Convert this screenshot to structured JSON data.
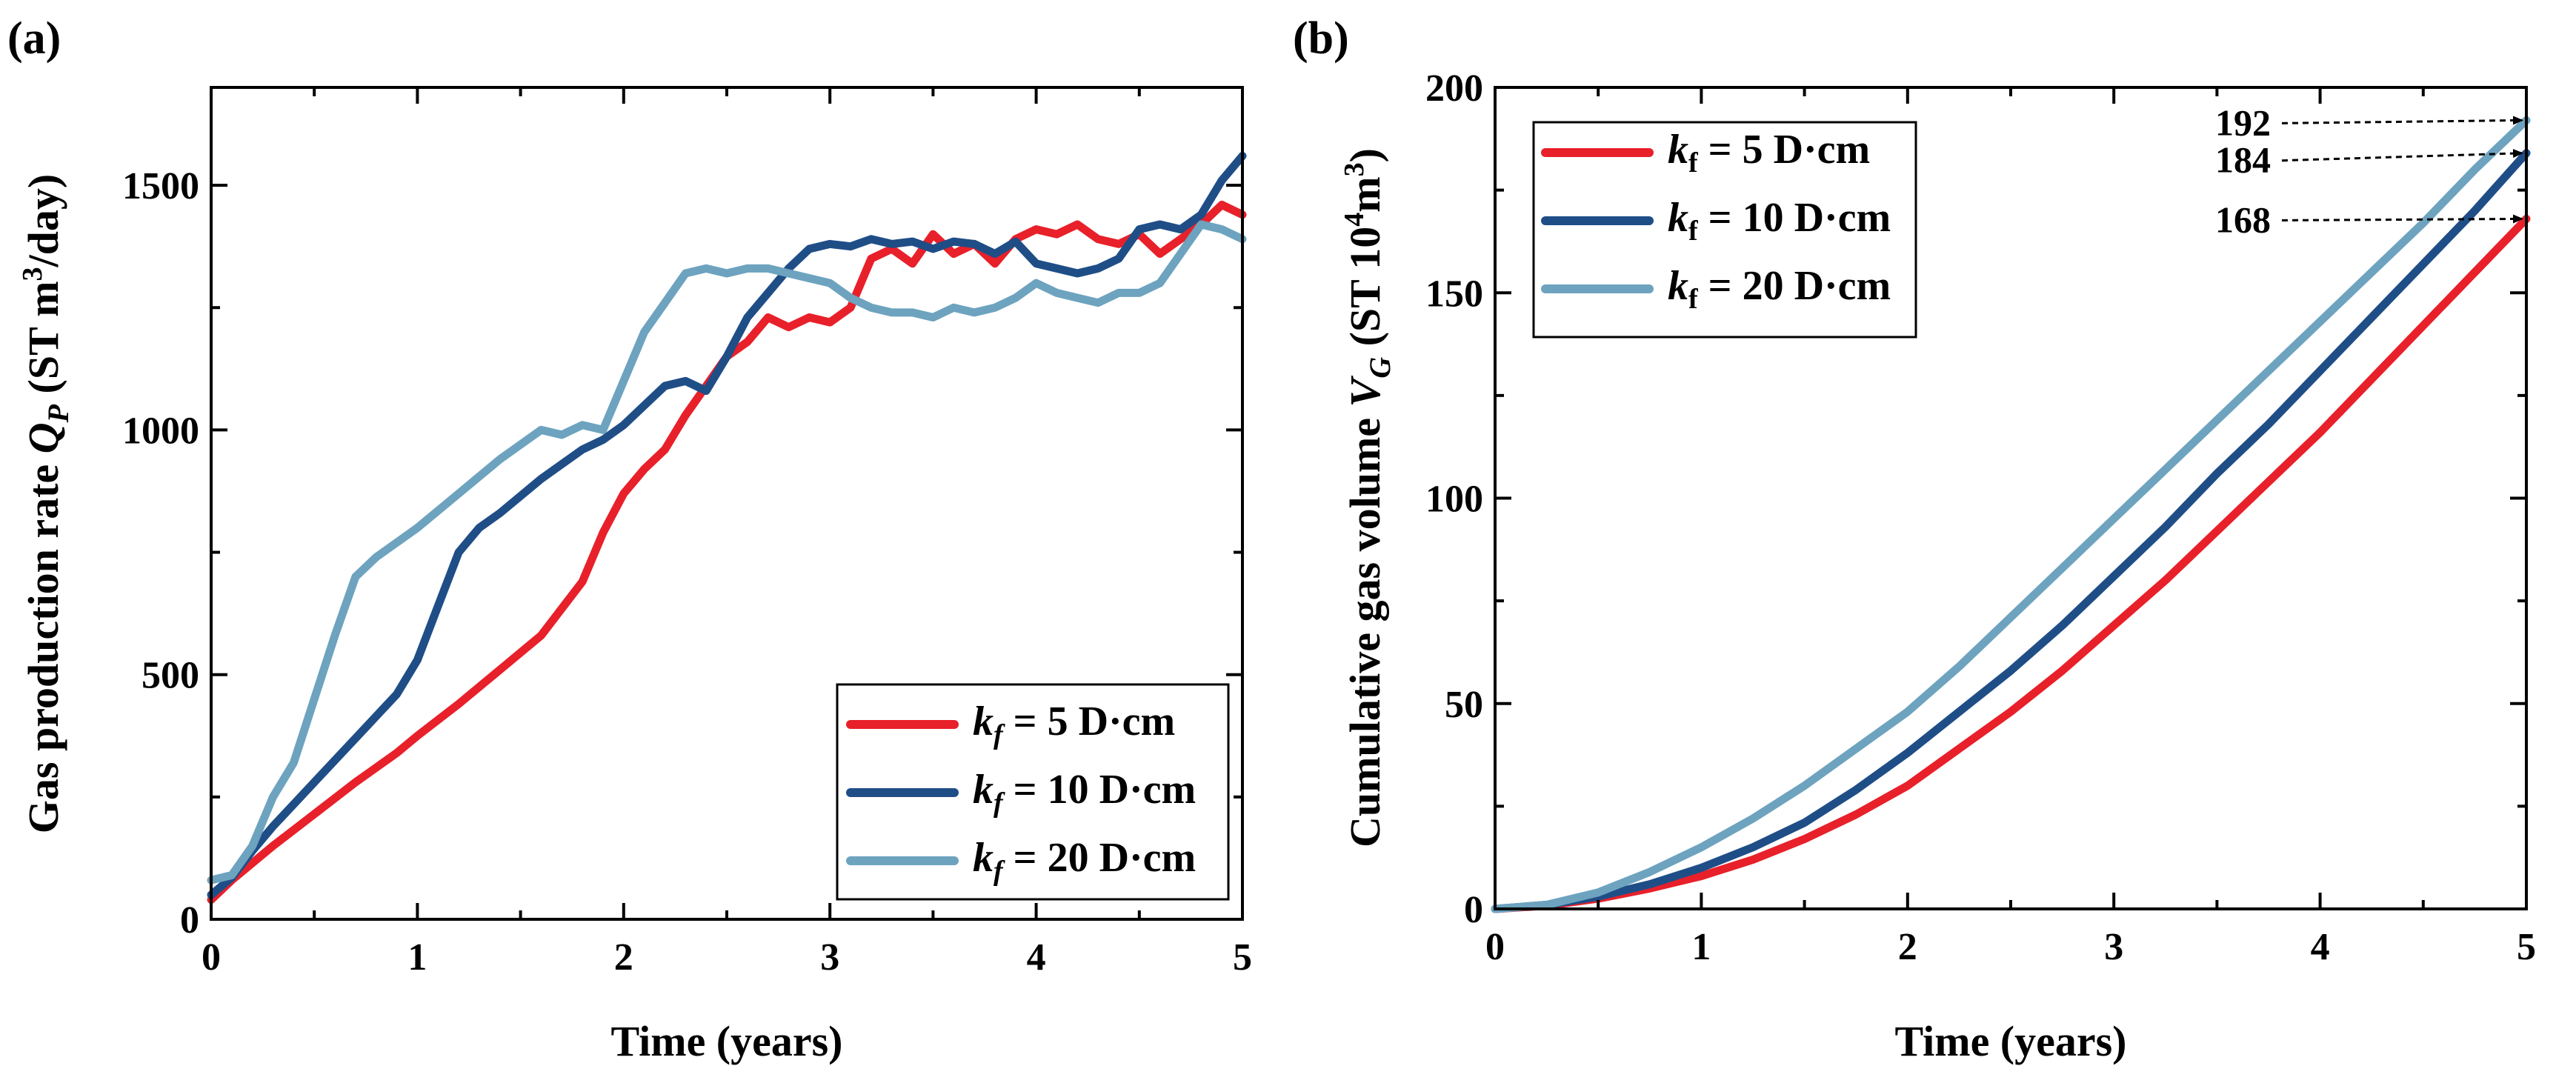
{
  "chart_data": [
    {
      "type": "line",
      "panel_label": "(a)",
      "xlabel": "Time (years)",
      "ylabel": {
        "prefix": "Gas production rate ",
        "var": "Q",
        "sub": "P",
        "unit_before": " (ST m",
        "sup": "3",
        "unit_after": "/day)"
      },
      "xlim": [
        0,
        5
      ],
      "ylim": [
        0,
        1700
      ],
      "xticks": [
        0,
        1,
        2,
        3,
        4,
        5
      ],
      "yticks": [
        0,
        500,
        1000,
        1500
      ],
      "grid": false,
      "legend_position": "bottom-right",
      "series": [
        {
          "name": "k_f = 5 D·cm",
          "legend": {
            "var": "k",
            "sub": "f",
            "rest": " = 5 D·cm"
          },
          "color": "#e8202a",
          "x": [
            0.0,
            0.1,
            0.2,
            0.3,
            0.5,
            0.7,
            0.9,
            1.0,
            1.2,
            1.4,
            1.6,
            1.8,
            1.9,
            2.0,
            2.1,
            2.2,
            2.3,
            2.4,
            2.5,
            2.6,
            2.7,
            2.8,
            2.9,
            3.0,
            3.1,
            3.2,
            3.3,
            3.4,
            3.5,
            3.6,
            3.7,
            3.8,
            3.9,
            4.0,
            4.1,
            4.2,
            4.3,
            4.4,
            4.5,
            4.6,
            4.7,
            4.8,
            4.9,
            5.0
          ],
          "y": [
            40,
            80,
            115,
            150,
            215,
            280,
            340,
            375,
            440,
            510,
            580,
            690,
            790,
            870,
            920,
            960,
            1030,
            1090,
            1150,
            1180,
            1230,
            1210,
            1230,
            1220,
            1250,
            1350,
            1370,
            1340,
            1400,
            1360,
            1380,
            1340,
            1390,
            1410,
            1400,
            1420,
            1390,
            1380,
            1400,
            1360,
            1390,
            1420,
            1460,
            1440
          ]
        },
        {
          "name": "k_f = 10 D·cm",
          "legend": {
            "var": "k",
            "sub": "f",
            "rest": " = 10 D·cm"
          },
          "color": "#1f4e87",
          "x": [
            0.0,
            0.1,
            0.2,
            0.3,
            0.5,
            0.7,
            0.9,
            1.0,
            1.1,
            1.2,
            1.3,
            1.4,
            1.6,
            1.8,
            1.9,
            2.0,
            2.1,
            2.2,
            2.3,
            2.4,
            2.5,
            2.6,
            2.7,
            2.8,
            2.9,
            3.0,
            3.1,
            3.2,
            3.3,
            3.4,
            3.5,
            3.6,
            3.7,
            3.8,
            3.9,
            4.0,
            4.1,
            4.2,
            4.3,
            4.4,
            4.5,
            4.6,
            4.7,
            4.8,
            4.9,
            5.0
          ],
          "y": [
            50,
            85,
            140,
            190,
            280,
            370,
            460,
            530,
            640,
            750,
            800,
            830,
            900,
            960,
            980,
            1010,
            1050,
            1090,
            1100,
            1080,
            1150,
            1230,
            1280,
            1330,
            1370,
            1380,
            1375,
            1390,
            1380,
            1385,
            1370,
            1385,
            1380,
            1360,
            1385,
            1340,
            1330,
            1320,
            1330,
            1350,
            1410,
            1420,
            1410,
            1440,
            1510,
            1560
          ]
        },
        {
          "name": "k_f = 20 D·cm",
          "legend": {
            "var": "k",
            "sub": "f",
            "rest": " = 20 D·cm"
          },
          "color": "#6da3bf",
          "x": [
            0.0,
            0.1,
            0.2,
            0.3,
            0.4,
            0.5,
            0.6,
            0.7,
            0.8,
            0.9,
            1.0,
            1.2,
            1.4,
            1.6,
            1.7,
            1.8,
            1.9,
            2.0,
            2.1,
            2.2,
            2.3,
            2.4,
            2.5,
            2.6,
            2.7,
            2.8,
            2.9,
            3.0,
            3.1,
            3.2,
            3.3,
            3.4,
            3.5,
            3.6,
            3.7,
            3.8,
            3.9,
            4.0,
            4.1,
            4.2,
            4.3,
            4.4,
            4.5,
            4.6,
            4.7,
            4.8,
            4.9,
            5.0
          ],
          "y": [
            80,
            90,
            150,
            250,
            320,
            450,
            580,
            700,
            740,
            770,
            800,
            870,
            940,
            1000,
            990,
            1010,
            1000,
            1100,
            1200,
            1260,
            1320,
            1330,
            1320,
            1330,
            1330,
            1320,
            1310,
            1300,
            1270,
            1250,
            1240,
            1240,
            1230,
            1250,
            1240,
            1250,
            1270,
            1300,
            1280,
            1270,
            1260,
            1280,
            1280,
            1300,
            1360,
            1420,
            1410,
            1390
          ]
        }
      ]
    },
    {
      "type": "line",
      "panel_label": "(b)",
      "xlabel": "Time (years)",
      "ylabel": {
        "prefix": "Cumulative gas volume ",
        "var": "V",
        "sub": "G",
        "unit_before": " (ST 10",
        "sup": "4",
        "unit_mid": "m",
        "sup2": "3",
        "unit_after": ")"
      },
      "xlim": [
        0,
        5
      ],
      "ylim": [
        0,
        200
      ],
      "xticks": [
        0,
        1,
        2,
        3,
        4,
        5
      ],
      "yticks": [
        0,
        50,
        100,
        150,
        200
      ],
      "grid": false,
      "legend_position": "top-left",
      "annotations": [
        {
          "text": "192",
          "target_y": 192
        },
        {
          "text": "184",
          "target_y": 184
        },
        {
          "text": "168",
          "target_y": 168
        }
      ],
      "series": [
        {
          "name": "k_f = 5 D·cm",
          "legend": {
            "var": "k",
            "sub": "f",
            "rest": " = 5 D·cm"
          },
          "color": "#e8202a",
          "x": [
            0.0,
            0.25,
            0.5,
            0.75,
            1.0,
            1.25,
            1.5,
            1.75,
            2.0,
            2.25,
            2.5,
            2.75,
            3.0,
            3.25,
            3.5,
            3.75,
            4.0,
            4.25,
            4.5,
            4.75,
            5.0
          ],
          "y": [
            0,
            0.8,
            2.5,
            5,
            8,
            12,
            17,
            23,
            30,
            39,
            48,
            58,
            69,
            80,
            92,
            104,
            116,
            129,
            142,
            155,
            168
          ]
        },
        {
          "name": "k_f = 10 D·cm",
          "legend": {
            "var": "k",
            "sub": "f",
            "rest": " = 10 D·cm"
          },
          "color": "#1f4e87",
          "x": [
            0.0,
            0.25,
            0.5,
            0.75,
            1.0,
            1.25,
            1.5,
            1.75,
            2.0,
            2.25,
            2.5,
            2.75,
            3.0,
            3.25,
            3.5,
            3.75,
            4.0,
            4.25,
            4.5,
            4.75,
            5.0
          ],
          "y": [
            0,
            1,
            3,
            6,
            10,
            15,
            21,
            29,
            38,
            48,
            58,
            69,
            81,
            93,
            106,
            118,
            131,
            144,
            157,
            170,
            184
          ]
        },
        {
          "name": "k_f = 20 D·cm",
          "legend": {
            "var": "k",
            "sub": "f",
            "rest": " = 20 D·cm"
          },
          "color": "#6da3bf",
          "x": [
            0.0,
            0.25,
            0.5,
            0.75,
            1.0,
            1.25,
            1.5,
            1.75,
            2.0,
            2.25,
            2.5,
            2.75,
            3.0,
            3.25,
            3.5,
            3.75,
            4.0,
            4.25,
            4.5,
            4.75,
            5.0
          ],
          "y": [
            0,
            1,
            4,
            9,
            15,
            22,
            30,
            39,
            48,
            59,
            71,
            83,
            95,
            107,
            119,
            131,
            143,
            155,
            167,
            180,
            192
          ]
        }
      ]
    }
  ]
}
